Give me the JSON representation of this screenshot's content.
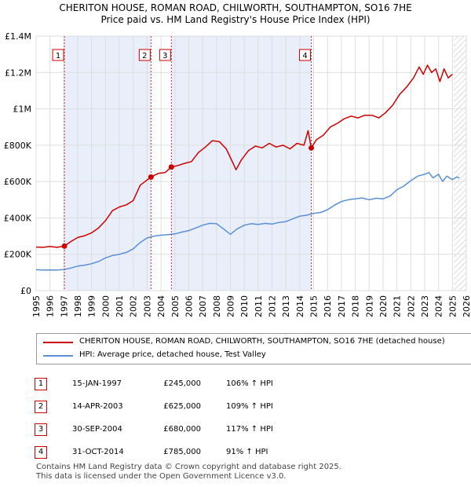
{
  "page": {
    "title_line1": "CHERITON HOUSE, ROMAN ROAD, CHILWORTH, SOUTHAMPTON, SO16 7HE",
    "title_line2": "Price paid vs. HM Land Registry's House Price Index (HPI)"
  },
  "chart_data": {
    "type": "line",
    "xlim": [
      1995,
      2026
    ],
    "ylim": [
      0,
      1400000
    ],
    "yticks": [
      0,
      200000,
      400000,
      600000,
      800000,
      1000000,
      1200000,
      1400000
    ],
    "ytick_labels": [
      "£0",
      "£200K",
      "£400K",
      "£600K",
      "£800K",
      "£1M",
      "£1.2M",
      "£1.4M"
    ],
    "xticks": [
      1995,
      1996,
      1997,
      1998,
      1999,
      2000,
      2001,
      2002,
      2003,
      2004,
      2005,
      2006,
      2007,
      2008,
      2009,
      2010,
      2011,
      2012,
      2013,
      2014,
      2015,
      2016,
      2017,
      2018,
      2019,
      2020,
      2021,
      2022,
      2023,
      2024,
      2025,
      2026
    ],
    "grid": true,
    "projection_start": 2025.1,
    "purchase_shading": [
      [
        1997.04,
        2003.28
      ],
      [
        2004.75,
        2014.83
      ]
    ],
    "series": [
      {
        "name": "CHERITON HOUSE, ROMAN ROAD, CHILWORTH, SOUTHAMPTON, SO16 7HE (detached house)",
        "color": "#cc0000",
        "x": [
          1995.0,
          1995.5,
          1996.0,
          1996.5,
          1997.04,
          1997.5,
          1998.0,
          1998.5,
          1999.0,
          1999.5,
          2000.0,
          2000.5,
          2001.0,
          2001.5,
          2002.0,
          2002.5,
          2003.28,
          2003.8,
          2004.3,
          2004.75,
          2005.2,
          2005.7,
          2006.2,
          2006.7,
          2007.2,
          2007.7,
          2008.2,
          2008.7,
          2009.2,
          2009.4,
          2009.8,
          2010.3,
          2010.8,
          2011.3,
          2011.8,
          2012.3,
          2012.8,
          2013.3,
          2013.8,
          2014.3,
          2014.6,
          2014.83,
          2015.2,
          2015.7,
          2016.2,
          2016.7,
          2017.2,
          2017.7,
          2018.2,
          2018.7,
          2019.2,
          2019.7,
          2020.2,
          2020.7,
          2021.2,
          2021.7,
          2022.2,
          2022.6,
          2022.9,
          2023.2,
          2023.5,
          2023.8,
          2024.1,
          2024.4,
          2024.7,
          2025.0
        ],
        "values": [
          240000,
          238000,
          243000,
          238000,
          245000,
          270000,
          292000,
          302000,
          318000,
          345000,
          385000,
          440000,
          460000,
          472000,
          495000,
          580000,
          625000,
          645000,
          650000,
          680000,
          688000,
          700000,
          710000,
          760000,
          790000,
          825000,
          820000,
          780000,
          700000,
          665000,
          720000,
          770000,
          795000,
          785000,
          810000,
          790000,
          800000,
          780000,
          810000,
          800000,
          880000,
          785000,
          830000,
          855000,
          900000,
          920000,
          945000,
          960000,
          950000,
          965000,
          965000,
          950000,
          980000,
          1020000,
          1080000,
          1120000,
          1170000,
          1230000,
          1190000,
          1240000,
          1200000,
          1220000,
          1150000,
          1220000,
          1170000,
          1190000
        ]
      },
      {
        "name": "HPI: Average price, detached house, Test Valley",
        "color": "#5b8fd4",
        "x": [
          1995.0,
          1995.5,
          1996.0,
          1996.5,
          1997.0,
          1997.5,
          1998.0,
          1998.5,
          1999.0,
          1999.5,
          2000.0,
          2000.5,
          2001.0,
          2001.5,
          2002.0,
          2002.5,
          2003.0,
          2003.5,
          2004.0,
          2004.5,
          2005.0,
          2005.5,
          2006.0,
          2006.5,
          2007.0,
          2007.5,
          2008.0,
          2008.5,
          2009.0,
          2009.5,
          2010.0,
          2010.5,
          2011.0,
          2011.5,
          2012.0,
          2012.5,
          2013.0,
          2013.5,
          2014.0,
          2014.5,
          2015.0,
          2015.5,
          2016.0,
          2016.5,
          2017.0,
          2017.5,
          2018.0,
          2018.5,
          2019.0,
          2019.5,
          2020.0,
          2020.5,
          2021.0,
          2021.5,
          2022.0,
          2022.5,
          2023.0,
          2023.3,
          2023.6,
          2024.0,
          2024.3,
          2024.6,
          2025.0,
          2025.3,
          2025.5
        ],
        "values": [
          115000,
          113000,
          114000,
          113000,
          116000,
          124000,
          135000,
          140000,
          148000,
          160000,
          180000,
          193000,
          200000,
          210000,
          230000,
          265000,
          290000,
          300000,
          305000,
          308000,
          312000,
          322000,
          330000,
          345000,
          360000,
          370000,
          368000,
          340000,
          310000,
          340000,
          360000,
          368000,
          364000,
          370000,
          366000,
          375000,
          380000,
          395000,
          410000,
          415000,
          425000,
          430000,
          445000,
          470000,
          490000,
          500000,
          505000,
          510000,
          500000,
          508000,
          505000,
          520000,
          555000,
          575000,
          605000,
          630000,
          640000,
          650000,
          620000,
          640000,
          600000,
          630000,
          610000,
          625000,
          620000
        ]
      }
    ],
    "sales": [
      {
        "n": "1",
        "x": 1997.04,
        "y": 245000
      },
      {
        "n": "2",
        "x": 2003.28,
        "y": 625000
      },
      {
        "n": "3",
        "x": 2004.75,
        "y": 680000
      },
      {
        "n": "4",
        "x": 2014.83,
        "y": 785000
      }
    ]
  },
  "legend": {
    "property_label": "CHERITON HOUSE, ROMAN ROAD, CHILWORTH, SOUTHAMPTON, SO16 7HE (detached house)",
    "hpi_label": "HPI: Average price, detached house, Test Valley"
  },
  "sales_table": [
    {
      "n": "1",
      "date": "15-JAN-1997",
      "price": "£245,000",
      "hpi": "106% ↑ HPI"
    },
    {
      "n": "2",
      "date": "14-APR-2003",
      "price": "£625,000",
      "hpi": "109% ↑ HPI"
    },
    {
      "n": "3",
      "date": "30-SEP-2004",
      "price": "£680,000",
      "hpi": "117% ↑ HPI"
    },
    {
      "n": "4",
      "date": "31-OCT-2014",
      "price": "£785,000",
      "hpi": "91% ↑ HPI"
    }
  ],
  "footer": {
    "line1": "Contains HM Land Registry data © Crown copyright and database right 2025.",
    "line2": "This data is licensed under the Open Government Licence v3.0."
  }
}
